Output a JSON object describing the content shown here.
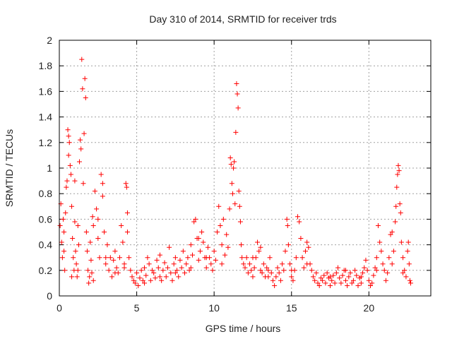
{
  "chart_data": {
    "type": "scatter",
    "title": "Day 310 of 2014, SRMTID for receiver trds",
    "xlabel": "GPS time / hours",
    "ylabel": "SRMTID / TECUs",
    "xlim": [
      0,
      24
    ],
    "ylim": [
      0,
      2
    ],
    "grid": true,
    "marker": "+",
    "color": "#ff0000",
    "xticks": [
      {
        "value": 0,
        "label": "0"
      },
      {
        "value": 5,
        "label": "5"
      },
      {
        "value": 10,
        "label": "10"
      },
      {
        "value": 15,
        "label": "15"
      },
      {
        "value": 20,
        "label": "20"
      }
    ],
    "yticks": [
      {
        "value": 0,
        "label": "0"
      },
      {
        "value": 0.2,
        "label": "0.2"
      },
      {
        "value": 0.4,
        "label": "0.4"
      },
      {
        "value": 0.6,
        "label": "0.6"
      },
      {
        "value": 0.8,
        "label": "0.8"
      },
      {
        "value": 1.0,
        "label": "1"
      },
      {
        "value": 1.2,
        "label": "1.2"
      },
      {
        "value": 1.4,
        "label": "1.4"
      },
      {
        "value": 1.6,
        "label": "1.6"
      },
      {
        "value": 1.8,
        "label": "1.8"
      },
      {
        "value": 2.0,
        "label": "2"
      }
    ],
    "series": [
      {
        "name": "trds",
        "points": [
          [
            0.05,
            0.55
          ],
          [
            0.1,
            0.72
          ],
          [
            0.15,
            0.42
          ],
          [
            0.2,
            0.3
          ],
          [
            0.25,
            0.6
          ],
          [
            0.3,
            0.5
          ],
          [
            0.35,
            0.2
          ],
          [
            0.4,
            0.65
          ],
          [
            0.45,
            0.85
          ],
          [
            0.5,
            0.9
          ],
          [
            0.55,
            1.3
          ],
          [
            0.6,
            1.25
          ],
          [
            0.65,
            1.2
          ],
          [
            0.7,
            1.02
          ],
          [
            0.75,
            0.95
          ],
          [
            0.8,
            0.7
          ],
          [
            0.85,
            0.45
          ],
          [
            0.9,
            0.3
          ],
          [
            0.95,
            0.2
          ],
          [
            1.0,
            0.58
          ],
          [
            1.05,
            0.35
          ],
          [
            1.1,
            0.25
          ],
          [
            1.15,
            0.15
          ],
          [
            1.2,
            0.55
          ],
          [
            1.25,
            0.4
          ],
          [
            1.3,
            1.05
          ],
          [
            1.35,
            1.22
          ],
          [
            1.4,
            1.15
          ],
          [
            1.45,
            1.85
          ],
          [
            1.5,
            1.62
          ],
          [
            1.55,
            0.88
          ],
          [
            1.6,
            1.27
          ],
          [
            1.65,
            1.7
          ],
          [
            1.7,
            1.55
          ],
          [
            1.75,
            0.5
          ],
          [
            1.8,
            0.35
          ],
          [
            1.85,
            0.2
          ],
          [
            1.9,
            0.1
          ],
          [
            1.95,
            0.15
          ],
          [
            2.0,
            0.42
          ],
          [
            2.05,
            0.28
          ],
          [
            2.1,
            0.18
          ],
          [
            2.15,
            0.62
          ],
          [
            2.2,
            0.55
          ],
          [
            2.3,
            0.82
          ],
          [
            2.4,
            0.68
          ],
          [
            2.5,
            0.45
          ],
          [
            2.6,
            0.3
          ],
          [
            2.7,
            0.95
          ],
          [
            2.8,
            0.88
          ],
          [
            2.9,
            0.5
          ],
          [
            3.0,
            0.25
          ],
          [
            3.1,
            0.4
          ],
          [
            3.2,
            0.2
          ],
          [
            3.3,
            0.3
          ],
          [
            3.4,
            0.15
          ],
          [
            3.5,
            0.28
          ],
          [
            3.6,
            0.35
          ],
          [
            3.7,
            0.22
          ],
          [
            3.8,
            0.18
          ],
          [
            3.9,
            0.3
          ],
          [
            4.0,
            0.55
          ],
          [
            4.1,
            0.42
          ],
          [
            4.2,
            0.25
          ],
          [
            4.3,
            0.88
          ],
          [
            4.35,
            0.85
          ],
          [
            4.4,
            0.65
          ],
          [
            4.5,
            0.3
          ],
          [
            4.6,
            0.2
          ],
          [
            4.7,
            0.15
          ],
          [
            4.8,
            0.12
          ],
          [
            4.9,
            0.1
          ],
          [
            5.0,
            0.18
          ],
          [
            5.1,
            0.08
          ],
          [
            5.2,
            0.14
          ],
          [
            5.3,
            0.2
          ],
          [
            5.4,
            0.12
          ],
          [
            5.5,
            0.22
          ],
          [
            5.6,
            0.16
          ],
          [
            5.7,
            0.3
          ],
          [
            5.8,
            0.25
          ],
          [
            5.9,
            0.12
          ],
          [
            6.0,
            0.2
          ],
          [
            6.1,
            0.18
          ],
          [
            6.2,
            0.14
          ],
          [
            6.3,
            0.28
          ],
          [
            6.4,
            0.22
          ],
          [
            6.5,
            0.32
          ],
          [
            6.6,
            0.12
          ],
          [
            6.7,
            0.2
          ],
          [
            6.8,
            0.26
          ],
          [
            6.9,
            0.15
          ],
          [
            7.0,
            0.22
          ],
          [
            7.1,
            0.38
          ],
          [
            7.2,
            0.18
          ],
          [
            7.3,
            0.12
          ],
          [
            7.4,
            0.25
          ],
          [
            7.5,
            0.3
          ],
          [
            7.6,
            0.2
          ],
          [
            7.7,
            0.15
          ],
          [
            7.8,
            0.28
          ],
          [
            7.9,
            0.22
          ],
          [
            8.0,
            0.35
          ],
          [
            8.1,
            0.18
          ],
          [
            8.2,
            0.25
          ],
          [
            8.3,
            0.3
          ],
          [
            8.4,
            0.2
          ],
          [
            8.5,
            0.4
          ],
          [
            8.6,
            0.32
          ],
          [
            8.7,
            0.58
          ],
          [
            8.8,
            0.6
          ],
          [
            8.9,
            0.45
          ],
          [
            9.0,
            0.28
          ],
          [
            9.1,
            0.35
          ],
          [
            9.2,
            0.5
          ],
          [
            9.3,
            0.42
          ],
          [
            9.4,
            0.3
          ],
          [
            9.5,
            0.22
          ],
          [
            9.6,
            0.38
          ],
          [
            9.7,
            0.3
          ],
          [
            9.8,
            0.25
          ],
          [
            9.9,
            0.2
          ],
          [
            10.0,
            0.35
          ],
          [
            10.1,
            0.28
          ],
          [
            10.2,
            0.5
          ],
          [
            10.3,
            0.7
          ],
          [
            10.4,
            0.55
          ],
          [
            10.5,
            0.4
          ],
          [
            10.6,
            0.6
          ],
          [
            10.7,
            0.32
          ],
          [
            10.8,
            0.48
          ],
          [
            10.9,
            0.38
          ],
          [
            11.0,
            0.68
          ],
          [
            11.05,
            1.08
          ],
          [
            11.1,
            1.03
          ],
          [
            11.15,
            0.88
          ],
          [
            11.2,
            0.8
          ],
          [
            11.25,
            1.0
          ],
          [
            11.3,
            1.05
          ],
          [
            11.35,
            0.72
          ],
          [
            11.4,
            1.28
          ],
          [
            11.45,
            1.66
          ],
          [
            11.5,
            1.58
          ],
          [
            11.55,
            1.47
          ],
          [
            11.6,
            0.82
          ],
          [
            11.65,
            0.7
          ],
          [
            11.7,
            0.58
          ],
          [
            11.75,
            0.4
          ],
          [
            11.8,
            0.3
          ],
          [
            11.9,
            0.25
          ],
          [
            12.0,
            0.22
          ],
          [
            12.1,
            0.3
          ],
          [
            12.2,
            0.18
          ],
          [
            12.3,
            0.25
          ],
          [
            12.4,
            0.2
          ],
          [
            12.5,
            0.15
          ],
          [
            12.6,
            0.22
          ],
          [
            12.7,
            0.3
          ],
          [
            12.8,
            0.42
          ],
          [
            12.9,
            0.35
          ],
          [
            13.0,
            0.2
          ],
          [
            13.1,
            0.18
          ],
          [
            13.2,
            0.25
          ],
          [
            13.3,
            0.15
          ],
          [
            13.4,
            0.22
          ],
          [
            13.5,
            0.2
          ],
          [
            13.6,
            0.3
          ],
          [
            13.7,
            0.18
          ],
          [
            13.8,
            0.12
          ],
          [
            13.9,
            0.08
          ],
          [
            14.0,
            0.15
          ],
          [
            14.1,
            0.22
          ],
          [
            14.2,
            0.18
          ],
          [
            14.3,
            0.12
          ],
          [
            14.4,
            0.25
          ],
          [
            14.5,
            0.2
          ],
          [
            14.6,
            0.35
          ],
          [
            14.7,
            0.6
          ],
          [
            14.75,
            0.55
          ],
          [
            14.8,
            0.4
          ],
          [
            14.9,
            0.25
          ],
          [
            15.0,
            0.15
          ],
          [
            15.1,
            0.12
          ],
          [
            15.2,
            0.2
          ],
          [
            15.3,
            0.3
          ],
          [
            15.4,
            0.62
          ],
          [
            15.5,
            0.58
          ],
          [
            15.6,
            0.45
          ],
          [
            15.7,
            0.3
          ],
          [
            15.8,
            0.22
          ],
          [
            15.9,
            0.35
          ],
          [
            16.0,
            0.42
          ],
          [
            16.1,
            0.38
          ],
          [
            16.2,
            0.25
          ],
          [
            16.3,
            0.2
          ],
          [
            16.4,
            0.15
          ],
          [
            16.5,
            0.12
          ],
          [
            16.6,
            0.18
          ],
          [
            16.7,
            0.1
          ],
          [
            16.8,
            0.08
          ],
          [
            16.9,
            0.14
          ],
          [
            17.0,
            0.12
          ],
          [
            17.1,
            0.16
          ],
          [
            17.2,
            0.1
          ],
          [
            17.3,
            0.18
          ],
          [
            17.4,
            0.14
          ],
          [
            17.5,
            0.08
          ],
          [
            17.6,
            0.12
          ],
          [
            17.7,
            0.16
          ],
          [
            17.8,
            0.1
          ],
          [
            17.9,
            0.18
          ],
          [
            18.0,
            0.22
          ],
          [
            18.1,
            0.14
          ],
          [
            18.2,
            0.1
          ],
          [
            18.3,
            0.16
          ],
          [
            18.4,
            0.2
          ],
          [
            18.5,
            0.12
          ],
          [
            18.6,
            0.08
          ],
          [
            18.7,
            0.15
          ],
          [
            18.8,
            0.18
          ],
          [
            18.9,
            0.1
          ],
          [
            19.0,
            0.12
          ],
          [
            19.1,
            0.2
          ],
          [
            19.2,
            0.16
          ],
          [
            19.3,
            0.08
          ],
          [
            19.4,
            0.14
          ],
          [
            19.5,
            0.1
          ],
          [
            19.6,
            0.18
          ],
          [
            19.7,
            0.22
          ],
          [
            19.8,
            0.28
          ],
          [
            19.9,
            0.2
          ],
          [
            20.0,
            0.12
          ],
          [
            20.1,
            0.08
          ],
          [
            20.2,
            0.1
          ],
          [
            20.3,
            0.16
          ],
          [
            20.4,
            0.22
          ],
          [
            20.5,
            0.3
          ],
          [
            20.6,
            0.55
          ],
          [
            20.7,
            0.42
          ],
          [
            20.8,
            0.35
          ],
          [
            20.9,
            0.25
          ],
          [
            21.0,
            0.2
          ],
          [
            21.1,
            0.12
          ],
          [
            21.2,
            0.18
          ],
          [
            21.3,
            0.3
          ],
          [
            21.4,
            0.48
          ],
          [
            21.5,
            0.5
          ],
          [
            21.6,
            0.35
          ],
          [
            21.7,
            0.58
          ],
          [
            21.75,
            0.7
          ],
          [
            21.8,
            0.85
          ],
          [
            21.85,
            0.95
          ],
          [
            21.9,
            1.02
          ],
          [
            21.95,
            0.98
          ],
          [
            22.0,
            0.72
          ],
          [
            22.05,
            0.65
          ],
          [
            22.1,
            0.42
          ],
          [
            22.2,
            0.3
          ],
          [
            22.3,
            0.2
          ],
          [
            22.4,
            0.15
          ],
          [
            22.5,
            0.35
          ],
          [
            22.55,
            0.42
          ],
          [
            22.6,
            0.25
          ],
          [
            22.65,
            0.12
          ],
          [
            22.7,
            0.1
          ],
          [
            0.3,
            0.35
          ],
          [
            0.8,
            0.15
          ],
          [
            1.2,
            0.2
          ],
          [
            2.2,
            0.12
          ],
          [
            3.0,
            0.3
          ],
          [
            3.6,
            0.18
          ],
          [
            4.2,
            0.22
          ],
          [
            5.5,
            0.1
          ],
          [
            6.5,
            0.15
          ],
          [
            7.5,
            0.18
          ],
          [
            8.5,
            0.22
          ],
          [
            9.5,
            0.3
          ],
          [
            10.5,
            0.25
          ],
          [
            12.5,
            0.3
          ],
          [
            13.5,
            0.15
          ],
          [
            15.0,
            0.2
          ],
          [
            16.0,
            0.25
          ],
          [
            17.5,
            0.15
          ],
          [
            18.5,
            0.2
          ],
          [
            19.5,
            0.15
          ],
          [
            20.5,
            0.2
          ],
          [
            21.5,
            0.25
          ],
          [
            22.2,
            0.18
          ],
          [
            2.5,
            0.6
          ],
          [
            1.0,
            0.9
          ],
          [
            0.6,
            1.1
          ],
          [
            2.8,
            0.78
          ],
          [
            4.4,
            0.5
          ],
          [
            9.0,
            0.45
          ],
          [
            13.0,
            0.38
          ]
        ]
      }
    ]
  }
}
